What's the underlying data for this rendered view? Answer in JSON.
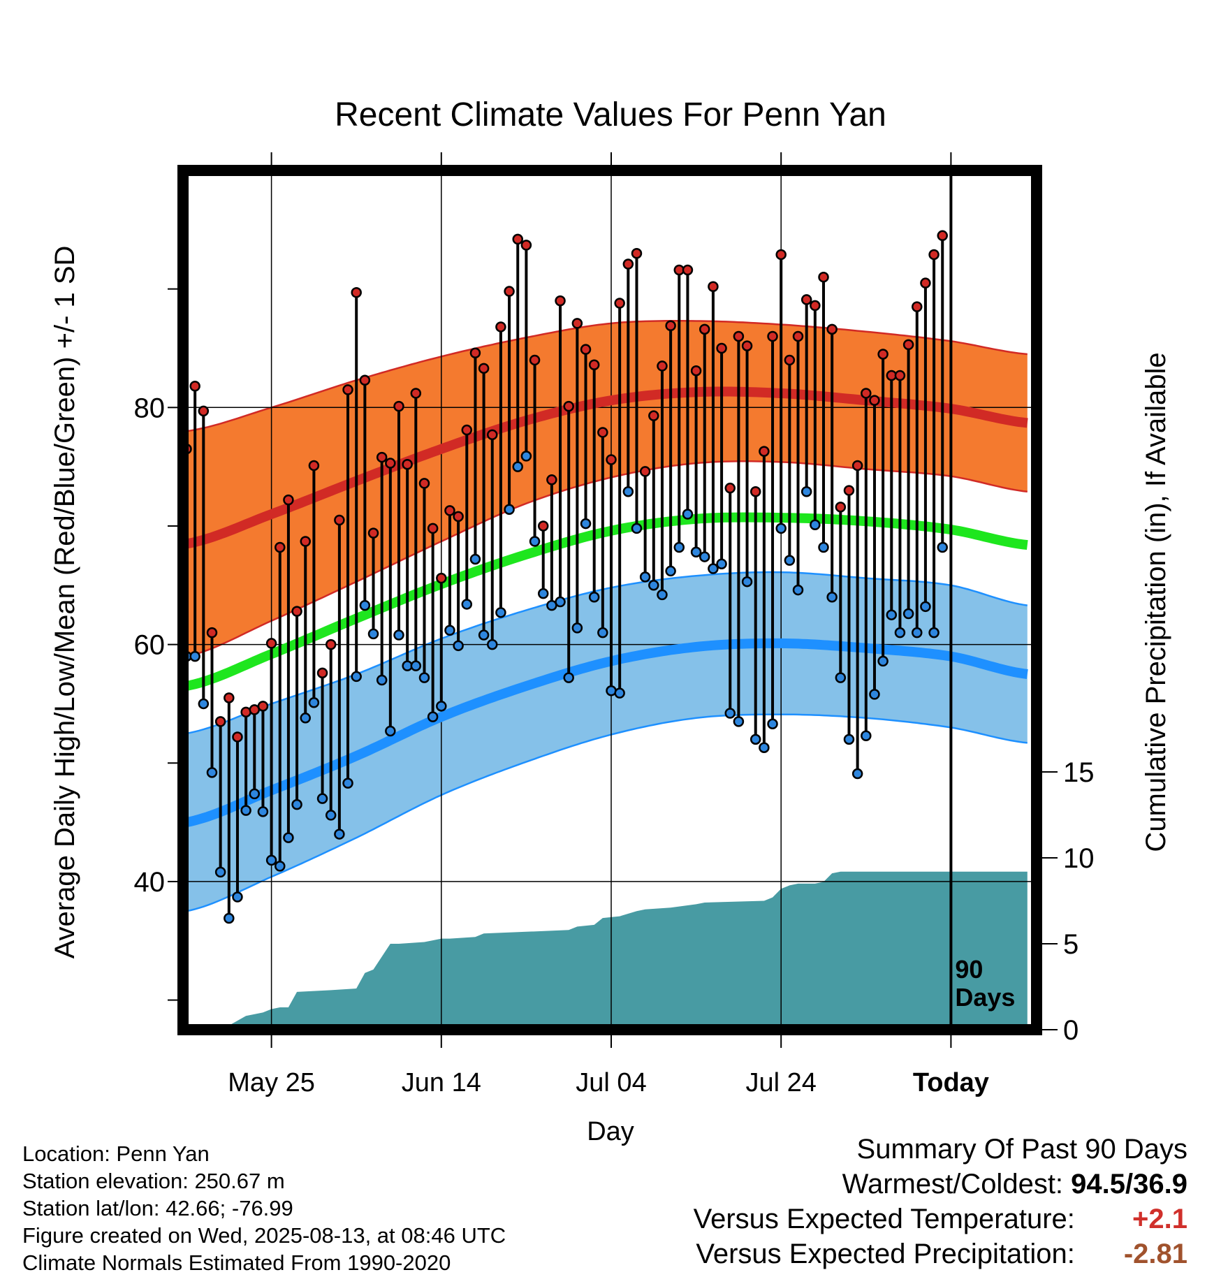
{
  "chart_data": {
    "type": "line",
    "title": "Recent Climate Values For Penn Yan",
    "xlabel": "Day",
    "ylabel": "Average Daily High/Low/Mean (Red/Blue/Green) +/- 1 SD",
    "y2label": "Cumulative Precipitation (in), If Available",
    "ylim": [
      27.5,
      100
    ],
    "y2lim": [
      0,
      50
    ],
    "y_ticks": [
      "40",
      "60",
      "80"
    ],
    "y_minor_ticks": [
      30,
      50,
      70,
      90
    ],
    "y2_ticks": [
      "0",
      "5",
      "10",
      "15"
    ],
    "x_ticks": [
      {
        "day": 10,
        "label": "May 25"
      },
      {
        "day": 30,
        "label": "Jun 14"
      },
      {
        "day": 50,
        "label": "Jul 04"
      },
      {
        "day": 70,
        "label": "Jul 24"
      },
      {
        "day": 90,
        "label": "Today"
      }
    ],
    "x_range_days": [
      0,
      99
    ],
    "today_marker_label": [
      "90",
      "Days"
    ],
    "grid": true,
    "colors": {
      "high_band": "#f47a2f",
      "high_line": "#d12a25",
      "mean_line": "#1ee61e",
      "low_band": "#85c1e9",
      "low_line": "#1e90ff",
      "precip": "#489ba3",
      "high_marker": "#d12a25",
      "low_marker": "#2e86de"
    },
    "normals": {
      "day": [
        0,
        10,
        20,
        30,
        40,
        50,
        60,
        70,
        80,
        90,
        99
      ],
      "high": [
        68.5,
        71.0,
        73.8,
        76.5,
        78.9,
        80.6,
        81.3,
        81.2,
        80.6,
        79.9,
        78.7
      ],
      "high_sd": [
        9.5,
        9.0,
        8.5,
        7.8,
        7.0,
        6.5,
        6.0,
        5.8,
        5.8,
        5.7,
        5.8
      ],
      "mean": [
        56.5,
        59.2,
        62.2,
        65.1,
        67.6,
        69.6,
        70.6,
        70.7,
        70.4,
        69.7,
        68.4
      ],
      "low": [
        45.0,
        47.7,
        50.6,
        53.9,
        56.5,
        58.6,
        59.8,
        60.1,
        59.7,
        59.0,
        57.5
      ],
      "low_sd": [
        7.5,
        7.3,
        6.9,
        6.6,
        6.4,
        6.2,
        6.0,
        6.0,
        5.9,
        6.0,
        5.8
      ]
    },
    "series": [
      {
        "name": "High",
        "values": [
          76.5,
          81.8,
          79.7,
          61.0,
          53.5,
          55.5,
          52.2,
          54.3,
          54.5,
          54.8,
          60.1,
          68.2,
          72.2,
          62.8,
          68.7,
          75.1,
          57.6,
          60.0,
          70.5,
          81.5,
          89.7,
          82.3,
          69.4,
          75.8,
          75.3,
          80.1,
          75.2,
          81.2,
          73.6,
          69.8,
          65.6,
          71.3,
          70.8,
          78.1,
          84.6,
          83.3,
          77.7,
          86.8,
          89.8,
          94.2,
          93.7,
          84.0,
          70.0,
          73.9,
          89.0,
          80.1,
          87.1,
          84.9,
          83.6,
          77.9,
          75.6,
          88.8,
          92.1,
          93.0,
          74.6,
          79.3,
          83.5,
          86.9,
          91.6,
          91.6,
          83.1,
          86.6,
          90.2,
          85.0,
          73.2,
          86.0,
          85.2,
          72.9,
          76.3,
          86.0,
          92.9,
          84.0,
          86.0,
          89.1,
          88.6,
          91.0,
          86.6,
          71.6,
          73.0,
          75.1,
          81.2,
          80.6,
          84.5,
          82.7,
          82.7,
          85.3,
          88.5,
          90.5,
          92.9,
          94.5
        ]
      },
      {
        "name": "Low",
        "values": [
          59.0,
          59.0,
          55.0,
          49.2,
          40.8,
          36.9,
          38.7,
          46.0,
          47.4,
          45.9,
          41.8,
          41.3,
          43.7,
          46.5,
          53.8,
          55.1,
          47.0,
          45.6,
          44.0,
          48.3,
          57.3,
          63.3,
          60.9,
          57.0,
          52.7,
          60.8,
          58.2,
          58.2,
          57.2,
          53.9,
          54.8,
          61.2,
          59.9,
          63.4,
          67.2,
          60.8,
          60.0,
          62.7,
          71.4,
          75.0,
          75.9,
          68.7,
          64.3,
          63.3,
          63.6,
          57.2,
          61.4,
          70.2,
          64.0,
          61.0,
          56.1,
          55.9,
          72.9,
          69.8,
          65.7,
          65.0,
          64.2,
          66.2,
          68.2,
          71.0,
          67.8,
          67.4,
          66.4,
          66.8,
          54.2,
          53.5,
          65.3,
          52.0,
          51.3,
          53.3,
          69.8,
          67.1,
          64.6,
          72.9,
          70.1,
          68.2,
          64.0,
          57.2,
          52.0,
          49.1,
          52.3,
          55.8,
          58.6,
          62.5,
          61.0,
          62.6,
          61.0,
          63.2,
          61.0,
          68.2
        ]
      },
      {
        "name": "Precipitation",
        "day": [
          0,
          5,
          5.2,
          7,
          9,
          10,
          11,
          12,
          13,
          17,
          20,
          21,
          22,
          24,
          25,
          28,
          29,
          30,
          31,
          34,
          35,
          40,
          45,
          46,
          48,
          49,
          51,
          53,
          54,
          57,
          60,
          61,
          68,
          69,
          70,
          71,
          72,
          74,
          75,
          76,
          77,
          90,
          99
        ],
        "values": [
          0,
          0,
          0.3,
          0.8,
          1.0,
          1.2,
          1.3,
          1.3,
          2.2,
          2.3,
          2.4,
          3.3,
          3.5,
          5.0,
          5.0,
          5.1,
          5.2,
          5.3,
          5.3,
          5.4,
          5.6,
          5.7,
          5.8,
          6.0,
          6.1,
          6.5,
          6.6,
          6.9,
          7.0,
          7.1,
          7.3,
          7.4,
          7.5,
          7.7,
          8.2,
          8.4,
          8.5,
          8.5,
          8.6,
          9.1,
          9.2,
          9.2,
          9.2
        ]
      }
    ]
  },
  "info": {
    "location": "Location: Penn Yan",
    "elevation": "Station elevation: 250.67 m",
    "latlon": "Station lat/lon: 42.66; -76.99",
    "created": "Figure created on Wed, 2025-08-13, at 08:46 UTC",
    "normals": "Climate Normals Estimated From 1990-2020"
  },
  "summary": {
    "title": "Summary Of Past 90 Days",
    "warmest_coldest_label": "Warmest/Coldest:",
    "warmest_coldest_value": "94.5/36.9",
    "temp_label": "Versus Expected Temperature:",
    "temp_value": "+2.1",
    "precip_label": "Versus Expected Precipitation:",
    "precip_value": "-2.81"
  }
}
